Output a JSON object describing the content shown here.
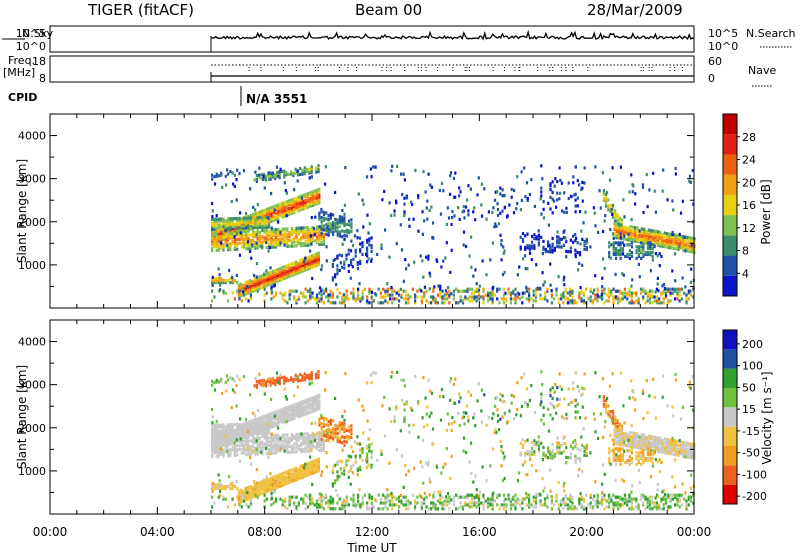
{
  "header": {
    "station": "TIGER (fitACF)",
    "beam": "Beam 00",
    "date": "28/Mar/2009"
  },
  "top_panels": {
    "nsky_label": "N.Sky",
    "nsky_ticks": [
      "10^5",
      "10^0"
    ],
    "nsearch_label": "N.Search",
    "nsearch_ticks": [
      "10^5",
      "10^0"
    ],
    "freq_label": "Freq.",
    "freq_unit": "[MHz]",
    "freq_ticks": [
      "18",
      "8"
    ],
    "nave_label": "Nave",
    "nave_ticks": [
      "60",
      "0"
    ],
    "cpid_label": "CPID",
    "cpid_value": "N/A 3551"
  },
  "colors": {
    "power_scale": [
      "#0a14c8",
      "#2050a8",
      "#3a8c6a",
      "#7ec050",
      "#e8d010",
      "#f0a010",
      "#f06010",
      "#e02010",
      "#c00000"
    ],
    "velocity_scale": [
      "#e00000",
      "#f06020",
      "#f0a020",
      "#f0c040",
      "#c8c8c8",
      "#70c040",
      "#30a030",
      "#2050a0",
      "#1010c0"
    ]
  },
  "chart_data": [
    {
      "type": "heatmap",
      "panel": "power",
      "ylabel": "Slant Range [km]",
      "ylim": [
        0,
        4500
      ],
      "yticks": [
        "4000",
        "3000",
        "2000",
        "1000"
      ],
      "xlim": [
        0,
        24
      ],
      "colorbar_label": "Power [dB]",
      "colorbar_ticks": [
        "28",
        "24",
        "20",
        "16",
        "12",
        "8",
        "4"
      ],
      "colorbar_range": [
        0,
        32
      ]
    },
    {
      "type": "heatmap",
      "panel": "velocity",
      "ylabel": "Slant Range [km]",
      "ylim": [
        0,
        4500
      ],
      "yticks": [
        "4000",
        "3000",
        "2000",
        "1000"
      ],
      "xlim": [
        0,
        24
      ],
      "xlabel": "Time UT",
      "xticks": [
        "00:00",
        "04:00",
        "08:00",
        "12:00",
        "16:00",
        "20:00",
        "00:00"
      ],
      "colorbar_label": "Velocity [m s⁻¹]",
      "colorbar_ticks": [
        "200",
        "100",
        "50",
        "15",
        "-15",
        "-50",
        "-100",
        "-200"
      ]
    }
  ]
}
